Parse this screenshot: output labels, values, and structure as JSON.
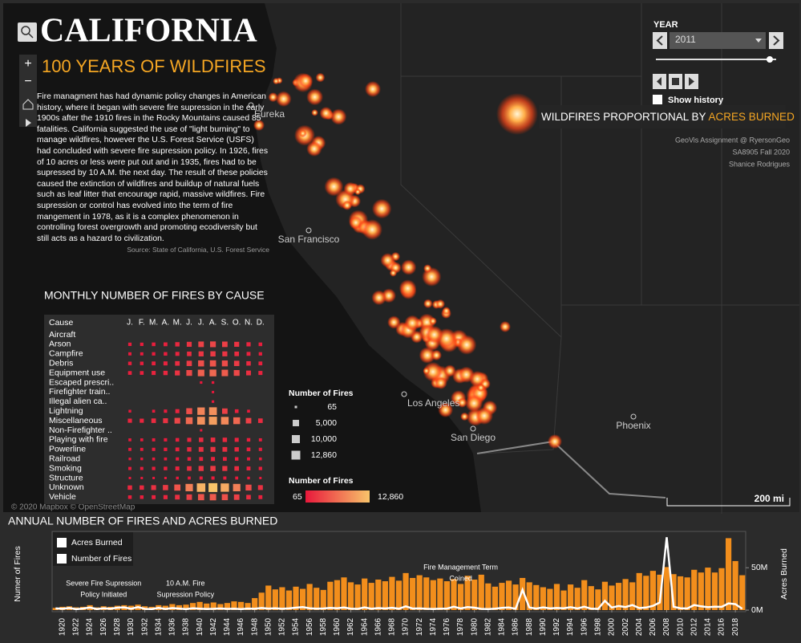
{
  "header": {
    "title": "CALIFORNIA",
    "subtitle": "100 YEARS OF WILDFIRES"
  },
  "description": "Fire managment has had dynamic policy changes in American history, where it began with severe fire supression in the early 1900s after the 1910 fires in the Rocky Mountains caused 85 fatalities. California suggested the use of \"light burning\" to manage wildfires, however the U.S. Forest Service (USFS) had concluded with severe fire supression policy. In 1926, fires of 10 acres or less were put out and in 1935, fires had to be supressed by 10 A.M. the next day. The result of these policies caused the extinction of wildfires and buildup of natural fuels such as leaf litter that encourage rapid, massive wildfires. Fire supression or control has evolved into the term of fire mangement in 1978, as it is a complex phenomenon in controlling forest overgrowth and promoting ecodiversity but still acts as a hazard to civilization.",
  "source": "Source: State of California, U.S. Forest Service",
  "year_filter": {
    "label": "YEAR",
    "value": "2011",
    "show_history": "Show history"
  },
  "map": {
    "legend_prefix": "WILDFIRES PROPORTIONAL BY",
    "legend_highlight": "ACRES BURNED",
    "credits": [
      "GeoVis Assignment @ RyersonGeo",
      "SA8905 Fall 2020",
      "Shanice Rodrigues"
    ],
    "cities": [
      "Eureka",
      "San Francisco",
      "Los Angeles",
      "San Diego",
      "Phoenix"
    ],
    "attribution": "© 2020 Mapbox © OpenStreetMap",
    "scale": "200 mi"
  },
  "chart_data": [
    {
      "type": "heatmap",
      "title": "MONTHLY NUMBER OF FIRES BY CAUSE",
      "row_header": "Cause",
      "categories": [
        "J.",
        "F.",
        "M.",
        "A.",
        "M.",
        "J.",
        "J.",
        "A.",
        "S.",
        "O.",
        "N.",
        "D."
      ],
      "rows": [
        "Aircraft",
        "Arson",
        "Campfire",
        "Debris",
        "Equipment use",
        "Escaped prescri..",
        "Firefighter train..",
        "Illegal alien ca..",
        "Lightning",
        "Miscellaneous",
        "Non-Firefighter ..",
        "Playing with fire",
        "Powerline",
        "Railroad",
        "Smoking",
        "Structure",
        "Unknown",
        "Vehicle"
      ],
      "values": [
        [
          null,
          null,
          null,
          null,
          null,
          null,
          null,
          null,
          null,
          null,
          null,
          null
        ],
        [
          350,
          350,
          525,
          700,
          1225,
          2100,
          3150,
          3500,
          2975,
          2100,
          1050,
          525
        ],
        [
          250,
          250,
          375,
          500,
          875,
          1500,
          2250,
          2500,
          2125,
          1500,
          750,
          375
        ],
        [
          450,
          450,
          675,
          900,
          1575,
          2700,
          4050,
          4500,
          3825,
          2700,
          1350,
          675
        ],
        [
          600,
          600,
          900,
          1200,
          2100,
          3600,
          5400,
          6000,
          5100,
          3600,
          1800,
          900
        ],
        [
          null,
          null,
          null,
          null,
          null,
          null,
          70,
          80,
          null,
          null,
          null,
          null
        ],
        [
          null,
          null,
          null,
          null,
          null,
          null,
          null,
          65,
          null,
          null,
          null,
          null
        ],
        [
          null,
          null,
          null,
          null,
          null,
          null,
          null,
          70,
          null,
          null,
          null,
          null
        ],
        [
          100,
          null,
          150,
          300,
          900,
          4000,
          8000,
          9000,
          3000,
          600,
          150,
          null
        ],
        [
          1000,
          1000,
          1500,
          2000,
          3500,
          6000,
          9000,
          10000,
          8500,
          6000,
          3000,
          1500
        ],
        [
          null,
          null,
          null,
          null,
          null,
          null,
          65,
          null,
          null,
          null,
          null,
          null
        ],
        [
          150,
          150,
          225,
          300,
          525,
          900,
          1350,
          1500,
          1275,
          900,
          450,
          225
        ],
        [
          200,
          200,
          300,
          400,
          700,
          1200,
          1800,
          2000,
          1700,
          1200,
          600,
          300
        ],
        [
          80,
          80,
          120,
          160,
          280,
          480,
          720,
          800,
          680,
          480,
          240,
          120
        ],
        [
          250,
          250,
          375,
          500,
          875,
          1500,
          2250,
          2500,
          2125,
          1500,
          750,
          375
        ],
        [
          65,
          65,
          65,
          65,
          105,
          180,
          270,
          300,
          255,
          180,
          90,
          65
        ],
        [
          1286,
          1286,
          1929,
          2572,
          4501,
          7716,
          11574,
          12860,
          10931,
          7716,
          3858,
          1929
        ],
        [
          500,
          500,
          750,
          1000,
          1750,
          3000,
          4500,
          5000,
          4250,
          3000,
          1500,
          750
        ]
      ],
      "colors": [
        "#e8183b",
        "#f8c46a"
      ],
      "size_legend": {
        "title": "Number of Fires",
        "ticks": [
          65,
          {
            "value": 5000,
            "label": "5,000"
          },
          {
            "value": 10000,
            "label": "10,000"
          },
          {
            "value": 12860,
            "label": "12,860"
          }
        ]
      },
      "color_legend": {
        "title": "Number of Fires",
        "range": [
          65,
          {
            "value": 12860,
            "label": "12,860"
          }
        ]
      }
    },
    {
      "type": "bar-line",
      "title": "ANNUAL NUMBER OF FIRES AND ACRES BURNED",
      "ylabel": "Numer of Fires",
      "y2label": "Acres Burned",
      "x": [
        1919,
        1920,
        1921,
        1922,
        1923,
        1924,
        1925,
        1926,
        1927,
        1928,
        1929,
        1930,
        1931,
        1932,
        1933,
        1934,
        1935,
        1936,
        1937,
        1938,
        1939,
        1940,
        1941,
        1942,
        1943,
        1944,
        1945,
        1946,
        1947,
        1948,
        1949,
        1950,
        1951,
        1952,
        1953,
        1954,
        1955,
        1956,
        1957,
        1958,
        1959,
        1960,
        1961,
        1962,
        1963,
        1964,
        1965,
        1966,
        1967,
        1968,
        1969,
        1970,
        1971,
        1972,
        1973,
        1974,
        1975,
        1976,
        1977,
        1978,
        1979,
        1980,
        1981,
        1982,
        1983,
        1984,
        1985,
        1986,
        1987,
        1988,
        1989,
        1990,
        1991,
        1992,
        1993,
        1994,
        1995,
        1996,
        1997,
        1998,
        1999,
        2000,
        2001,
        2002,
        2003,
        2004,
        2005,
        2006,
        2007,
        2008,
        2009,
        2010,
        2011,
        2012,
        2013,
        2014,
        2015,
        2016,
        2017,
        2018,
        2019
      ],
      "xticks": [
        1920,
        1922,
        1924,
        1926,
        1928,
        1930,
        1932,
        1934,
        1936,
        1938,
        1940,
        1942,
        1944,
        1946,
        1948,
        1950,
        1952,
        1954,
        1956,
        1958,
        1960,
        1962,
        1964,
        1966,
        1968,
        1970,
        1972,
        1974,
        1976,
        1978,
        1980,
        1982,
        1984,
        1986,
        1988,
        1990,
        1992,
        1994,
        1996,
        1998,
        2000,
        2002,
        2004,
        2006,
        2008,
        2010,
        2012,
        2014,
        2016,
        2018
      ],
      "ylim": [
        0,
        14000
      ],
      "y2lim": [
        0,
        90000000
      ],
      "y2ticks": [
        {
          "value": 0,
          "label": "0M"
        },
        {
          "value": 50000000,
          "label": "50M"
        }
      ],
      "series": [
        {
          "name": "Acres Burned",
          "color": "#ffffff",
          "axis": "y2",
          "values": [
            2000000,
            1500000,
            2500000,
            1000000,
            1800000,
            3000000,
            1200000,
            2200000,
            1500000,
            2800000,
            3200000,
            1600000,
            3500000,
            1400000,
            1200000,
            2600000,
            1300000,
            2400000,
            1800000,
            1100000,
            2100000,
            1700000,
            1300000,
            1500000,
            1900000,
            1400000,
            1600000,
            1200000,
            1800000,
            1500000,
            2500000,
            1800000,
            2200000,
            1500000,
            2000000,
            2800000,
            3500000,
            2200000,
            1600000,
            1900000,
            2600000,
            2100000,
            3000000,
            1700000,
            1400000,
            3200000,
            1500000,
            2400000,
            1900000,
            2700000,
            1600000,
            4500000,
            1800000,
            2000000,
            1500000,
            1300000,
            1600000,
            1800000,
            4000000,
            1900000,
            3500000,
            2800000,
            1400000,
            1200000,
            1700000,
            2600000,
            3000000,
            1600000,
            24000000,
            3000000,
            1800000,
            3200000,
            2000000,
            2500000,
            2200000,
            3400000,
            1900000,
            4000000,
            1600000,
            1400000,
            11000000,
            3000000,
            4800000,
            3600000,
            6000000,
            2400000,
            3000000,
            5000000,
            9000000,
            86000000,
            4000000,
            2200000,
            1900000,
            6000000,
            4500000,
            3400000,
            4000000,
            3800000,
            8000000,
            7000000,
            1500000
          ]
        },
        {
          "name": "Number of Fires",
          "color": "#f28e1c",
          "values": [
            400,
            600,
            700,
            500,
            600,
            900,
            500,
            700,
            600,
            800,
            900,
            800,
            1000,
            700,
            600,
            900,
            800,
            1100,
            900,
            1000,
            1300,
            1500,
            1200,
            1400,
            1100,
            1300,
            1600,
            1500,
            1300,
            2200,
            3200,
            4500,
            3800,
            4200,
            3600,
            4300,
            3900,
            4800,
            4100,
            3700,
            5200,
            5500,
            6000,
            5100,
            4700,
            5800,
            5000,
            5600,
            5300,
            6100,
            5400,
            6800,
            5900,
            6400,
            6000,
            5500,
            5800,
            5300,
            5700,
            4800,
            6300,
            5600,
            6500,
            4900,
            4300,
            5000,
            5400,
            4700,
            5900,
            5100,
            4600,
            4200,
            3900,
            4800,
            3600,
            4700,
            4100,
            5500,
            4400,
            3800,
            5200,
            4500,
            5000,
            5700,
            5100,
            6800,
            6300,
            7200,
            6500,
            7900,
            6600,
            6200,
            6000,
            7400,
            6900,
            7800,
            6900,
            7700,
            13200,
            9000,
            6400
          ]
        }
      ],
      "annotations": [
        {
          "x": 1926,
          "text": [
            "Severe Fire Supression",
            "Policy Initiated"
          ]
        },
        {
          "x": 1935,
          "text": [
            "10 A.M. Fire",
            "Supression Policy"
          ]
        },
        {
          "x": 1978,
          "text": [
            "Fire Management Term",
            "Coined"
          ]
        }
      ]
    }
  ]
}
